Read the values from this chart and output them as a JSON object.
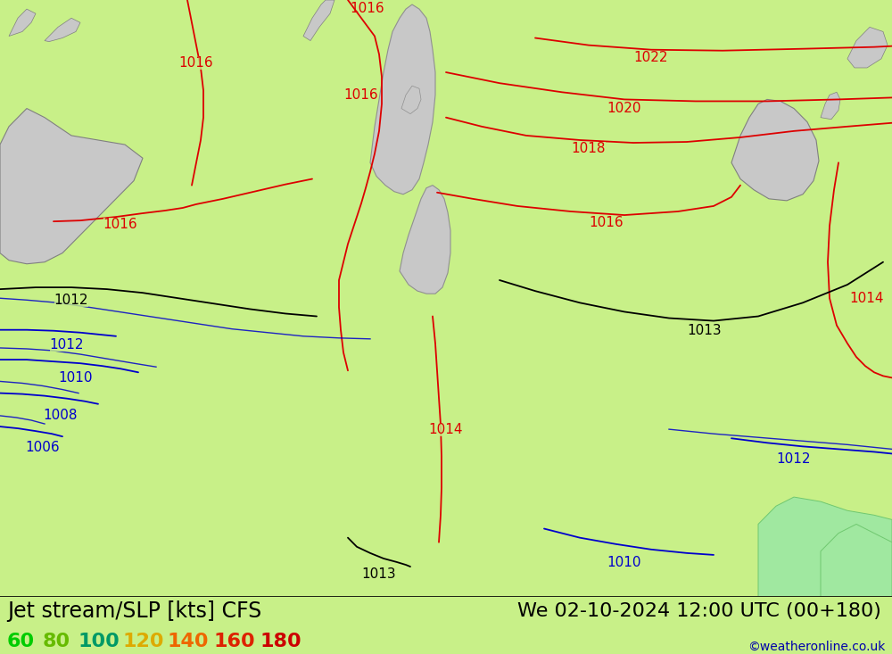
{
  "title_left": "Jet stream/SLP [kts] CFS",
  "title_right": "We 02-10-2024 12:00 UTC (00+180)",
  "copyright": "©weatheronline.co.uk",
  "bg_color": "#c8f088",
  "land_color_grey": "#c8c8c8",
  "land_edge_color": "#909090",
  "coastline_color": "#808080",
  "bottom_bar_color": "#ffffff",
  "legend_values": [
    "60",
    "80",
    "100",
    "120",
    "140",
    "160",
    "180"
  ],
  "legend_colors": [
    "#00cc00",
    "#66bb00",
    "#009966",
    "#ddaa00",
    "#ee6600",
    "#dd2200",
    "#cc0000"
  ],
  "title_fontsize": 17,
  "label_fontsize": 11,
  "copyright_fontsize": 10,
  "legend_fontsize": 16,
  "figsize": [
    10.0,
    7.33
  ],
  "dpi": 100
}
